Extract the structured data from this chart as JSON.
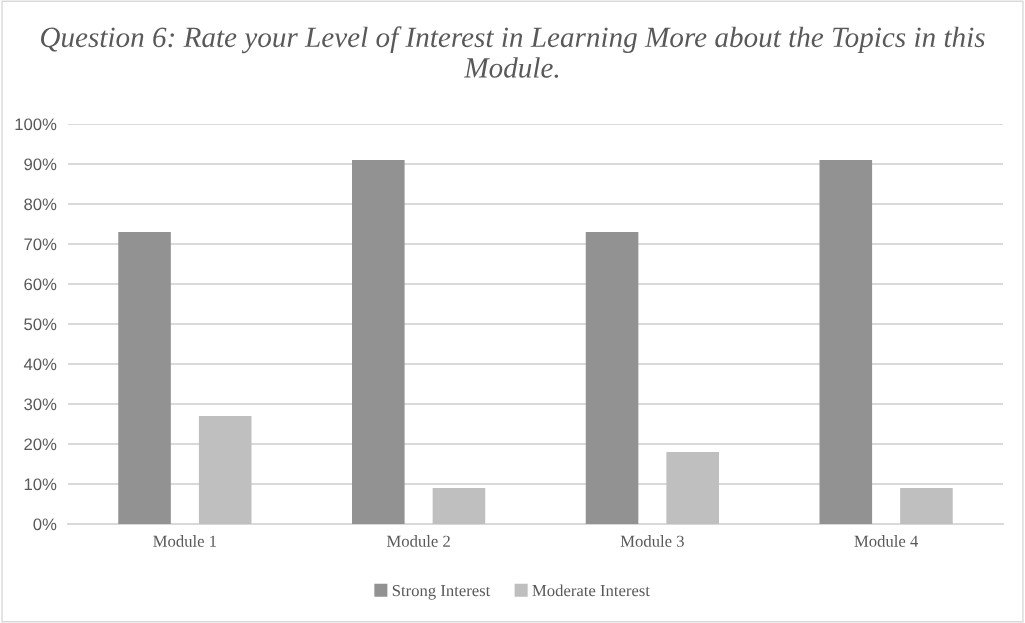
{
  "chart_data": {
    "type": "bar",
    "title": "Question 6: Rate your Level of Interest in Learning More about the Topics in this Module.",
    "categories": [
      "Module 1",
      "Module 2",
      "Module 3",
      "Module 4"
    ],
    "series": [
      {
        "name": "Strong Interest",
        "color": "#929292",
        "values": [
          73,
          91,
          73,
          91
        ]
      },
      {
        "name": "Moderate Interest",
        "color": "#bfbfbf",
        "values": [
          27,
          9,
          18,
          9
        ]
      }
    ],
    "ylim": [
      0,
      100
    ],
    "yticks": [
      {
        "value": 0,
        "label": "0%"
      },
      {
        "value": 10,
        "label": "10%"
      },
      {
        "value": 20,
        "label": "20%"
      },
      {
        "value": 30,
        "label": "30%"
      },
      {
        "value": 40,
        "label": "40%"
      },
      {
        "value": 50,
        "label": "50%"
      },
      {
        "value": 60,
        "label": "60%"
      },
      {
        "value": 70,
        "label": "70%"
      },
      {
        "value": 80,
        "label": "80%"
      },
      {
        "value": 90,
        "label": "90%"
      },
      {
        "value": 100,
        "label": "100%"
      }
    ],
    "grid": "y",
    "legend": "bottom"
  }
}
